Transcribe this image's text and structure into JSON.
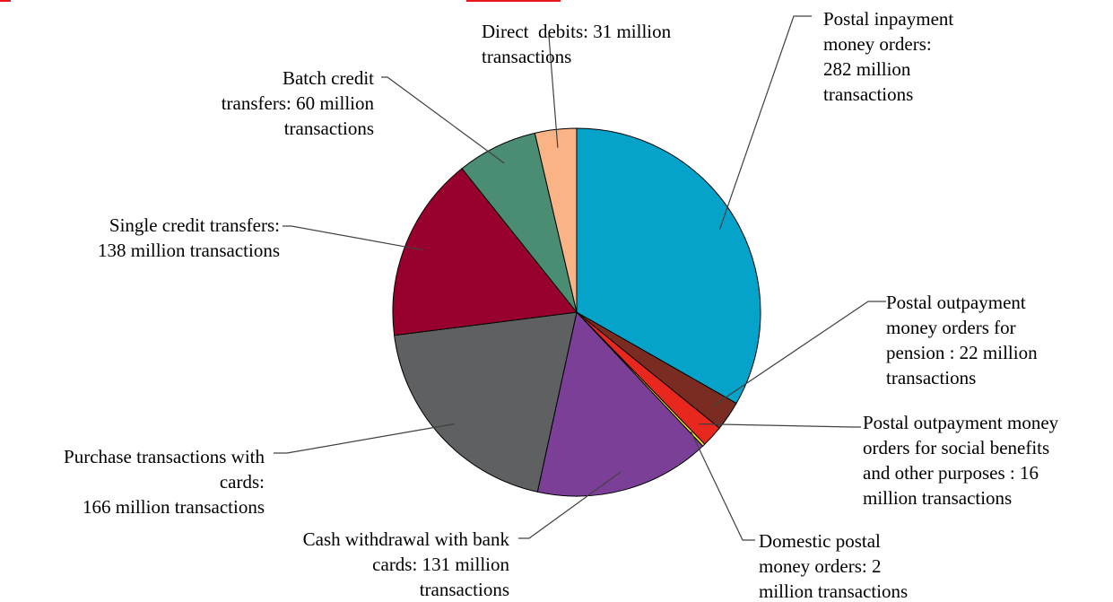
{
  "chart_data": {
    "type": "pie",
    "unit": "million transactions",
    "slices": [
      {
        "name": "Postal inpayment money orders",
        "value": 282,
        "color": "#05a3c9",
        "label": [
          "Postal inpayment",
          "money orders:",
          "282 million",
          "transactions"
        ]
      },
      {
        "name": "Postal outpayment money orders for pension",
        "value": 22,
        "color": "#7b2c22",
        "label": [
          "Postal outpayment",
          "money orders for",
          "pension : 22 million",
          "transactions"
        ]
      },
      {
        "name": "Postal outpayment money orders for social benefits and other purposes",
        "value": 16,
        "color": "#e8281f",
        "label": [
          "Postal outpayment money",
          "orders for social benefits",
          "and other purposes : 16",
          "million transactions"
        ]
      },
      {
        "name": "Domestic postal money orders",
        "value": 2,
        "color": "#f5e31b",
        "label": [
          "Domestic postal",
          "money orders: 2",
          "million transactions"
        ]
      },
      {
        "name": "Cash withdrawal with bank cards",
        "value": 131,
        "color": "#7b3f98",
        "label": [
          "Cash withdrawal with bank",
          "cards: 131 million",
          "transactions"
        ]
      },
      {
        "name": "Purchase transactions with cards",
        "value": 166,
        "color": "#5e6062",
        "label": [
          "Purchase transactions with",
          "cards:",
          "166 million transactions"
        ]
      },
      {
        "name": "Single credit transfers",
        "value": 138,
        "color": "#98002e",
        "label": [
          "Single credit transfers:",
          "138 million transactions"
        ]
      },
      {
        "name": "Batch credit transfers",
        "value": 60,
        "color": "#4a8d73",
        "label": [
          "Batch credit",
          "transfers: 60 million",
          "transactions"
        ]
      },
      {
        "name": "Direct debits",
        "value": 31,
        "color": "#f9b384",
        "label": [
          "Direct  debits: 31 million",
          "transactions"
        ]
      }
    ]
  }
}
